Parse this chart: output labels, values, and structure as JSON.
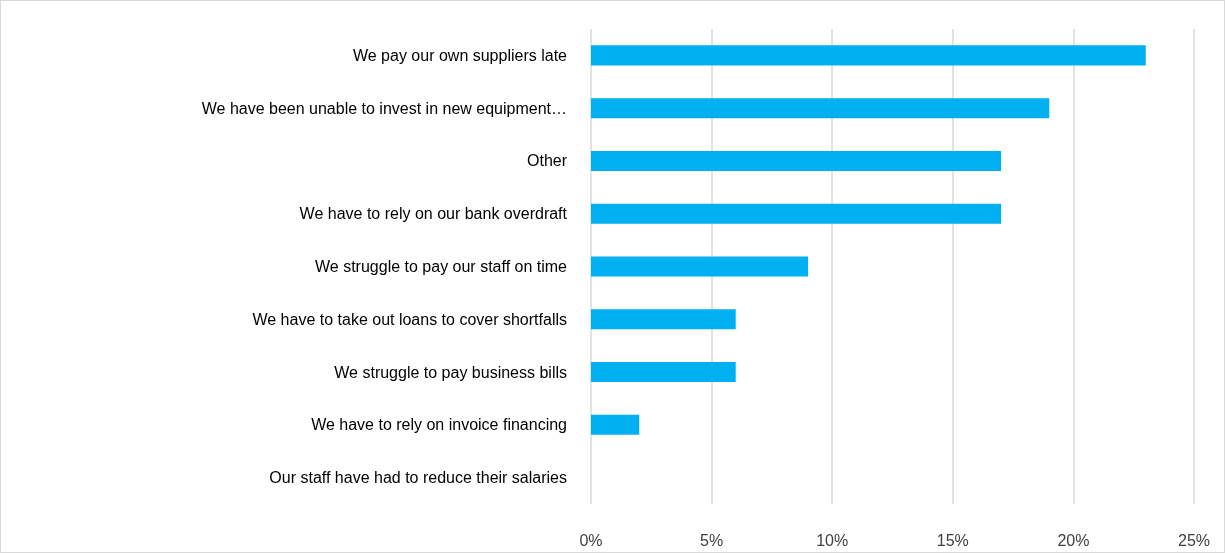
{
  "chart_data": {
    "type": "bar",
    "orientation": "horizontal",
    "categories": [
      "We pay our own suppliers late",
      "We have been unable to invest in new equipment…",
      "Other",
      "We have to rely on our bank overdraft",
      "We struggle to pay our staff on time",
      "We have to take out loans to cover shortfalls",
      "We struggle to pay business bills",
      "We have to rely on invoice financing",
      "Our staff have had to reduce their salaries"
    ],
    "values": [
      23,
      19,
      17,
      17,
      9,
      6,
      6,
      2,
      0
    ],
    "color": "#00b0f0",
    "xlim": [
      0,
      25
    ],
    "xticks": [
      {
        "value": 0,
        "label": "0%"
      },
      {
        "value": 5,
        "label": "5%"
      },
      {
        "value": 10,
        "label": "10%"
      },
      {
        "value": 15,
        "label": "15%"
      },
      {
        "value": 20,
        "label": "20%"
      },
      {
        "value": 25,
        "label": "25%"
      }
    ],
    "grid": "x"
  }
}
